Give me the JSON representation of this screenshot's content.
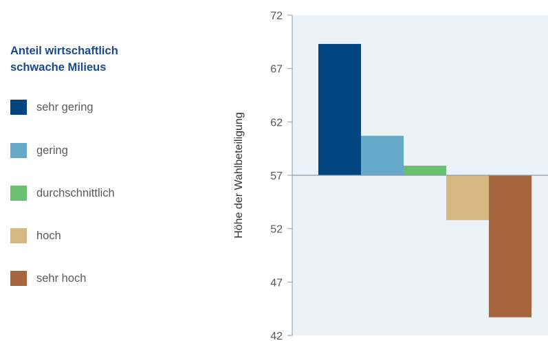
{
  "legend": {
    "title_line1": "Anteil wirtschaftlich",
    "title_line2": "schwache Milieus"
  },
  "chart_data": {
    "type": "bar",
    "ylabel": "Höhe der Wahlbeteiligung",
    "xlabel": "",
    "ylim": [
      42,
      72
    ],
    "yticks": [
      42,
      47,
      52,
      57,
      62,
      67,
      72
    ],
    "baseline": 57,
    "grid": false,
    "legend_position": "left",
    "plot_background": "#ebf2f8",
    "series": [
      {
        "name": "sehr gering",
        "value": 69.3,
        "color": "#00457f"
      },
      {
        "name": "gering",
        "value": 60.7,
        "color": "#67a9c9"
      },
      {
        "name": "durchschnittlich",
        "value": 57.9,
        "color": "#69bf6f"
      },
      {
        "name": "hoch",
        "value": 52.8,
        "color": "#d4b880"
      },
      {
        "name": "sehr hoch",
        "value": 43.7,
        "color": "#a5653d"
      }
    ]
  }
}
